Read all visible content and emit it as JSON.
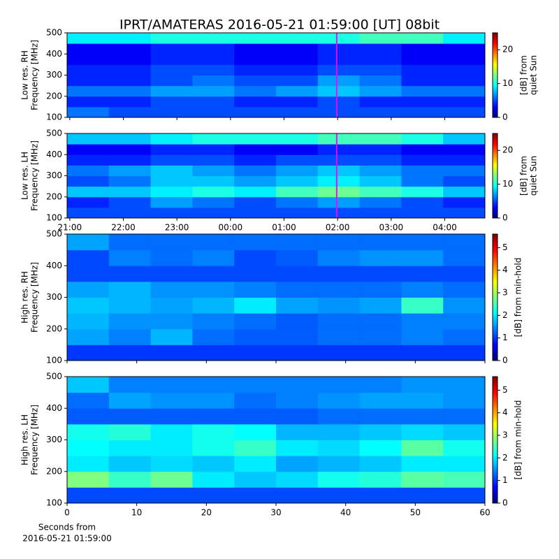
{
  "chart_data": [
    {
      "type": "heatmap",
      "title": "IPRT/AMATERAS 2016-05-21 01:59:00 [UT]   08bit",
      "ylabel": [
        "Low res. RH",
        "Frequency [MHz]"
      ],
      "colorbar_label": [
        "[dB] from",
        "quiet Sun"
      ],
      "colormap": "jet",
      "xlim": [
        20.95,
        28.75
      ],
      "xticks": [
        21,
        22,
        23,
        24,
        25,
        26,
        27,
        28
      ],
      "xticklabels": false,
      "ylim": [
        100,
        500
      ],
      "yticks": [
        100,
        200,
        300,
        400,
        500
      ],
      "clim": [
        0,
        25
      ],
      "cticks": [
        0,
        10,
        20
      ],
      "cursor_x": 25.983,
      "cursor_color": "#ff00ff",
      "xbins": [
        20.95,
        21.73,
        22.51,
        23.29,
        24.07,
        24.85,
        25.63,
        26.41,
        27.19,
        27.97,
        28.75
      ],
      "ybins": [
        100,
        150,
        200,
        250,
        300,
        350,
        400,
        450,
        500
      ],
      "z": [
        [
          6,
          5,
          5,
          5,
          5,
          5,
          5,
          5,
          5,
          5
        ],
        [
          4,
          4,
          5,
          5,
          4,
          4,
          5,
          4,
          4,
          4
        ],
        [
          6,
          6,
          7,
          7,
          6,
          7,
          8,
          7,
          6,
          6
        ],
        [
          4,
          4,
          5,
          6,
          5,
          5,
          7,
          6,
          4,
          4
        ],
        [
          4,
          4,
          5,
          5,
          4,
          4,
          5,
          5,
          4,
          4
        ],
        [
          3,
          3,
          4,
          4,
          3,
          3,
          4,
          4,
          3,
          3
        ],
        [
          3,
          3,
          4,
          4,
          3,
          3,
          4,
          4,
          3,
          3
        ],
        [
          9,
          9,
          10,
          10,
          10,
          10,
          10,
          11,
          11,
          9
        ]
      ]
    },
    {
      "type": "heatmap",
      "ylabel": [
        "Low res. LH",
        "Frequency [MHz]"
      ],
      "colorbar_label": [
        "[dB] from",
        "quiet Sun"
      ],
      "colormap": "jet",
      "xlim": [
        20.95,
        28.75
      ],
      "xticks": [
        {
          "value": 21,
          "label": "21:00"
        },
        {
          "value": 22,
          "label": "22:00"
        },
        {
          "value": 23,
          "label": "23:00"
        },
        {
          "value": 24,
          "label": "00:00"
        },
        {
          "value": 25,
          "label": "01:00"
        },
        {
          "value": 26,
          "label": "02:00"
        },
        {
          "value": 27,
          "label": "03:00"
        },
        {
          "value": 28,
          "label": "04:00"
        }
      ],
      "xticklabels": true,
      "ylim": [
        100,
        500
      ],
      "yticks": [
        100,
        200,
        300,
        400,
        500
      ],
      "clim": [
        0,
        25
      ],
      "cticks": [
        0,
        10,
        20
      ],
      "cursor_x": 25.983,
      "cursor_color": "#ff00ff",
      "xbins": [
        20.95,
        21.73,
        22.51,
        23.29,
        24.07,
        24.85,
        25.63,
        26.41,
        27.19,
        27.97,
        28.75
      ],
      "ybins": [
        100,
        150,
        200,
        250,
        300,
        350,
        400,
        450,
        500
      ],
      "z": [
        [
          5,
          5,
          5,
          5,
          5,
          5,
          5,
          5,
          5,
          5
        ],
        [
          4,
          5,
          7,
          6,
          5,
          6,
          7,
          6,
          5,
          4
        ],
        [
          8,
          8,
          9,
          10,
          9,
          11,
          12,
          11,
          10,
          8
        ],
        [
          5,
          6,
          8,
          8,
          7,
          8,
          9,
          8,
          6,
          5
        ],
        [
          6,
          7,
          8,
          7,
          6,
          7,
          8,
          7,
          6,
          6
        ],
        [
          4,
          4,
          5,
          5,
          4,
          5,
          5,
          5,
          4,
          4
        ],
        [
          3,
          3,
          4,
          4,
          3,
          3,
          4,
          4,
          3,
          3
        ],
        [
          8,
          8,
          9,
          10,
          10,
          10,
          11,
          11,
          10,
          8
        ]
      ]
    },
    {
      "type": "heatmap",
      "ylabel": [
        "High res. RH",
        "Frequency [MHz]"
      ],
      "colorbar_label": [
        "[dB] from min-hold"
      ],
      "colormap": "jet",
      "xlim": [
        0,
        60
      ],
      "xticks": [
        0,
        10,
        20,
        30,
        40,
        50,
        60
      ],
      "xticklabels": false,
      "ylim": [
        100,
        500
      ],
      "yticks": [
        100,
        200,
        300,
        400,
        500
      ],
      "clim": [
        0,
        5.6
      ],
      "cticks": [
        0,
        1,
        2,
        3,
        4,
        5
      ],
      "xbins": [
        0,
        6,
        12,
        18,
        24,
        30,
        36,
        42,
        48,
        54,
        60
      ],
      "ybins": [
        100,
        150,
        200,
        250,
        300,
        350,
        400,
        450,
        500
      ],
      "z": [
        [
          1.0,
          1.0,
          1.0,
          1.0,
          1.0,
          1.0,
          1.0,
          1.0,
          1.0,
          1.0
        ],
        [
          1.6,
          1.4,
          1.7,
          1.3,
          1.2,
          1.2,
          1.3,
          1.3,
          1.4,
          1.3
        ],
        [
          1.7,
          1.5,
          1.5,
          1.4,
          1.3,
          1.2,
          1.3,
          1.3,
          1.4,
          1.4
        ],
        [
          1.8,
          1.7,
          1.6,
          1.7,
          2.0,
          1.6,
          1.5,
          1.6,
          2.4,
          1.5
        ],
        [
          1.6,
          1.7,
          1.5,
          1.5,
          1.4,
          1.3,
          1.3,
          1.3,
          1.4,
          1.3
        ],
        [
          1.1,
          1.1,
          1.1,
          1.1,
          1.1,
          1.1,
          1.1,
          1.1,
          1.1,
          1.1
        ],
        [
          1.1,
          1.4,
          1.3,
          1.4,
          1.1,
          1.2,
          1.4,
          1.5,
          1.5,
          1.3
        ],
        [
          1.6,
          1.3,
          1.3,
          1.3,
          1.3,
          1.3,
          1.3,
          1.3,
          1.3,
          1.3
        ]
      ]
    },
    {
      "type": "heatmap",
      "ylabel": [
        "High res. LH",
        "Frequency [MHz]"
      ],
      "colorbar_label": [
        "[dB] from min-hold"
      ],
      "colormap": "jet",
      "xlim": [
        0,
        60
      ],
      "xticks": [
        0,
        10,
        20,
        30,
        40,
        50,
        60
      ],
      "xticklabels": true,
      "xlabel": [
        "Seconds from",
        "2016-05-21 01:59:00"
      ],
      "ylim": [
        100,
        500
      ],
      "yticks": [
        100,
        200,
        300,
        400,
        500
      ],
      "clim": [
        0,
        5.6
      ],
      "cticks": [
        0,
        1,
        2,
        3,
        4,
        5
      ],
      "xbins": [
        0,
        6,
        12,
        18,
        24,
        30,
        36,
        42,
        48,
        54,
        60
      ],
      "ybins": [
        100,
        150,
        200,
        250,
        300,
        350,
        400,
        450,
        500
      ],
      "z": [
        [
          1.1,
          1.1,
          1.1,
          1.1,
          1.1,
          1.1,
          1.1,
          1.1,
          1.1,
          1.1
        ],
        [
          2.8,
          2.4,
          2.7,
          2.0,
          1.8,
          1.9,
          2.2,
          2.3,
          2.6,
          2.5
        ],
        [
          2.0,
          1.8,
          1.9,
          1.8,
          2.0,
          1.6,
          1.7,
          1.8,
          2.0,
          2.0
        ],
        [
          2.1,
          2.0,
          2.0,
          2.2,
          2.4,
          2.0,
          1.9,
          2.1,
          2.6,
          2.2
        ],
        [
          2.2,
          2.3,
          2.0,
          2.2,
          2.1,
          1.7,
          1.7,
          1.8,
          1.9,
          1.8
        ],
        [
          1.2,
          1.2,
          1.2,
          1.2,
          1.2,
          1.2,
          1.3,
          1.3,
          1.3,
          1.3
        ],
        [
          1.3,
          1.6,
          1.5,
          1.5,
          1.3,
          1.4,
          1.5,
          1.6,
          1.6,
          1.5
        ],
        [
          1.8,
          1.4,
          1.4,
          1.4,
          1.4,
          1.4,
          1.4,
          1.4,
          1.5,
          1.5
        ]
      ]
    }
  ]
}
